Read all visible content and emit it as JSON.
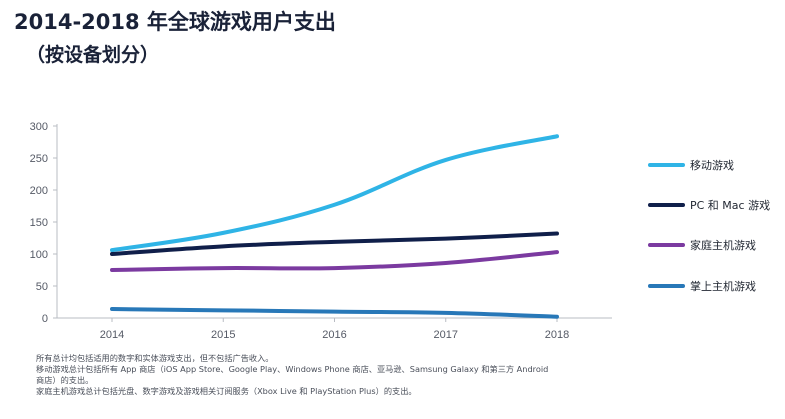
{
  "chart_data": {
    "type": "line",
    "title": "2014-2018 年全球游戏用户支出",
    "subtitle": "（按设备划分）",
    "x": [
      "2014",
      "2015",
      "2016",
      "2017",
      "2018"
    ],
    "ylim": [
      0,
      300
    ],
    "yticks": [
      "0",
      "50",
      "100",
      "150",
      "200",
      "250",
      "300"
    ],
    "grid": false,
    "legend_position": "right",
    "series": [
      {
        "name": "移动游戏",
        "color": "#2fb4e6",
        "values": [
          106,
          133,
          177,
          247,
          284
        ]
      },
      {
        "name": "PC 和 Mac 游戏",
        "color": "#101f4a",
        "values": [
          100,
          112,
          119,
          124,
          132
        ]
      },
      {
        "name": "家庭主机游戏",
        "color": "#7b3aa0",
        "values": [
          75,
          78,
          78,
          86,
          103
        ]
      },
      {
        "name": "掌上主机游戏",
        "color": "#2878b8",
        "values": [
          14,
          12,
          10,
          8,
          2
        ]
      }
    ]
  },
  "notes": [
    "所有总计均包括适用的数字和实体游戏支出，但不包括广告收入。",
    "移动游戏总计包括所有 App 商店（iOS App Store、Google Play、Windows Phone 商店、亚马逊、Samsung Galaxy 和第三方 Android",
    "商店）的支出。",
    "家庭主机游戏总计包括光盘、数字游戏及游戏相关订阅服务（Xbox Live 和 PlayStation Plus）的支出。"
  ]
}
